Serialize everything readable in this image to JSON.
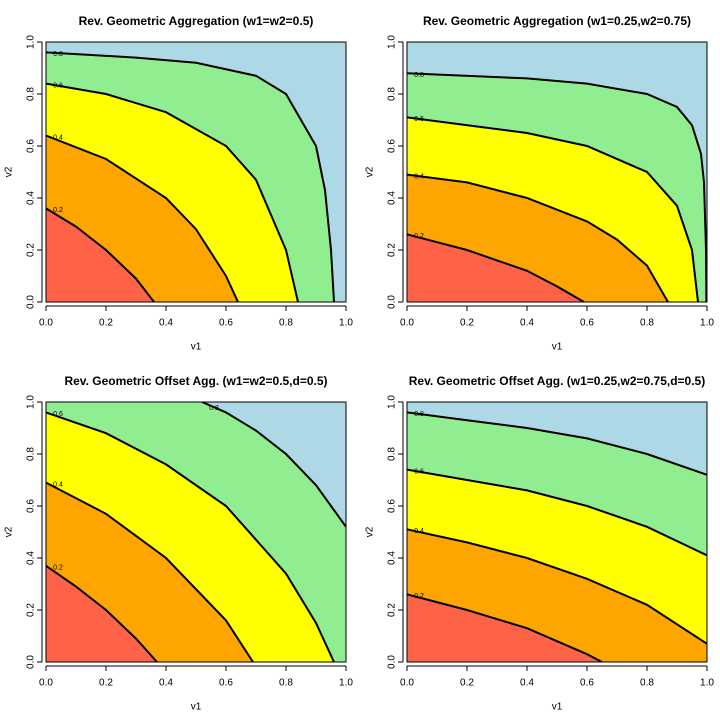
{
  "chart_data": [
    {
      "type": "contour",
      "title": "Rev. Geometric Aggregation (w1=w2=0.5)",
      "xlabel": "v1",
      "ylabel": "v2",
      "xlim": [
        0,
        1
      ],
      "ylim": [
        0,
        1
      ],
      "xticks": [
        {
          "value": 0,
          "label": "0.0"
        },
        0.2,
        0.4,
        0.6,
        0.8,
        {
          "value": 1,
          "label": "1.0"
        }
      ],
      "yticks": [
        {
          "value": 0,
          "label": "0.0"
        },
        0.2,
        0.4,
        0.6,
        0.8,
        {
          "value": 1,
          "label": "1.0"
        }
      ],
      "colors": [
        "#ff6347",
        "#ffa500",
        "#ffff00",
        "#90ee90",
        "#add8e6"
      ],
      "contours": [
        {
          "level": 0.2,
          "x": [
            0,
            0.1,
            0.2,
            0.3,
            0.36
          ],
          "y": [
            0.36,
            0.29,
            0.2,
            0.09,
            0
          ]
        },
        {
          "level": 0.4,
          "x": [
            0,
            0.2,
            0.4,
            0.5,
            0.6,
            0.64
          ],
          "y": [
            0.64,
            0.55,
            0.4,
            0.28,
            0.1,
            0
          ]
        },
        {
          "level": 0.6,
          "x": [
            0,
            0.2,
            0.4,
            0.6,
            0.7,
            0.8,
            0.84
          ],
          "y": [
            0.84,
            0.8,
            0.73,
            0.6,
            0.47,
            0.2,
            0
          ]
        },
        {
          "level": 0.8,
          "x": [
            0,
            0.3,
            0.5,
            0.7,
            0.8,
            0.9,
            0.93,
            0.95,
            0.96
          ],
          "y": [
            0.96,
            0.94,
            0.92,
            0.87,
            0.8,
            0.6,
            0.43,
            0.2,
            0
          ]
        }
      ]
    },
    {
      "type": "contour",
      "title": "Rev. Geometric Aggregation (w1=0.25,w2=0.75)",
      "xlabel": "v1",
      "ylabel": "v2",
      "xlim": [
        0,
        1
      ],
      "ylim": [
        0,
        1
      ],
      "xticks": [
        {
          "value": 0,
          "label": "0.0"
        },
        0.2,
        0.4,
        0.6,
        0.8,
        {
          "value": 1,
          "label": "1.0"
        }
      ],
      "yticks": [
        {
          "value": 0,
          "label": "0.0"
        },
        0.2,
        0.4,
        0.6,
        0.8,
        {
          "value": 1,
          "label": "1.0"
        }
      ],
      "colors": [
        "#ff6347",
        "#ffa500",
        "#ffff00",
        "#90ee90",
        "#add8e6"
      ],
      "contours": [
        {
          "level": 0.2,
          "x": [
            0,
            0.1,
            0.2,
            0.3,
            0.4,
            0.5,
            0.59
          ],
          "y": [
            0.26,
            0.23,
            0.2,
            0.16,
            0.12,
            0.06,
            0
          ]
        },
        {
          "level": 0.4,
          "x": [
            0,
            0.2,
            0.4,
            0.6,
            0.7,
            0.8,
            0.87
          ],
          "y": [
            0.49,
            0.46,
            0.4,
            0.31,
            0.24,
            0.14,
            0
          ]
        },
        {
          "level": 0.6,
          "x": [
            0,
            0.4,
            0.6,
            0.8,
            0.9,
            0.95,
            0.97
          ],
          "y": [
            0.71,
            0.65,
            0.6,
            0.5,
            0.37,
            0.2,
            0
          ]
        },
        {
          "level": 0.8,
          "x": [
            0,
            0.4,
            0.6,
            0.8,
            0.9,
            0.95,
            0.98,
            0.99,
            0.997,
            0.998
          ],
          "y": [
            0.88,
            0.86,
            0.84,
            0.8,
            0.75,
            0.68,
            0.57,
            0.46,
            0.19,
            0
          ]
        }
      ]
    },
    {
      "type": "contour",
      "title": "Rev. Geometric Offset Agg. (w1=w2=0.5,d=0.5)",
      "xlabel": "v1",
      "ylabel": "v2",
      "xlim": [
        0,
        1
      ],
      "ylim": [
        0,
        1
      ],
      "xticks": [
        {
          "value": 0,
          "label": "0.0"
        },
        0.2,
        0.4,
        0.6,
        0.8,
        {
          "value": 1,
          "label": "1.0"
        }
      ],
      "yticks": [
        {
          "value": 0,
          "label": "0.0"
        },
        0.2,
        0.4,
        0.6,
        0.8,
        {
          "value": 1,
          "label": "1.0"
        }
      ],
      "colors": [
        "#ff6347",
        "#ffa500",
        "#ffff00",
        "#90ee90",
        "#add8e6"
      ],
      "contours": [
        {
          "level": 0.2,
          "x": [
            0,
            0.1,
            0.2,
            0.3,
            0.37
          ],
          "y": [
            0.37,
            0.29,
            0.2,
            0.09,
            0
          ]
        },
        {
          "level": 0.4,
          "x": [
            0,
            0.2,
            0.4,
            0.6,
            0.69
          ],
          "y": [
            0.69,
            0.57,
            0.4,
            0.16,
            0
          ]
        },
        {
          "level": 0.6,
          "x": [
            0,
            0.2,
            0.4,
            0.6,
            0.8,
            0.9,
            0.96
          ],
          "y": [
            0.96,
            0.88,
            0.76,
            0.6,
            0.34,
            0.15,
            0
          ]
        },
        {
          "level": 0.8,
          "x": [
            0.52,
            0.6,
            0.7,
            0.8,
            0.9,
            1
          ],
          "y": [
            1,
            0.96,
            0.89,
            0.8,
            0.68,
            0.52
          ]
        }
      ]
    },
    {
      "type": "contour",
      "title": "Rev. Geometric Offset Agg. (w1=0.25,w2=0.75,d=0.5)",
      "xlabel": "v1",
      "ylabel": "v2",
      "xlim": [
        0,
        1
      ],
      "ylim": [
        0,
        1
      ],
      "xticks": [
        {
          "value": 0,
          "label": "0.0"
        },
        0.2,
        0.4,
        0.6,
        0.8,
        {
          "value": 1,
          "label": "1.0"
        }
      ],
      "yticks": [
        {
          "value": 0,
          "label": "0.0"
        },
        0.2,
        0.4,
        0.6,
        0.8,
        {
          "value": 1,
          "label": "1.0"
        }
      ],
      "colors": [
        "#ff6347",
        "#ffa500",
        "#ffff00",
        "#90ee90",
        "#add8e6"
      ],
      "contours": [
        {
          "level": 0.2,
          "x": [
            0,
            0.2,
            0.4,
            0.6,
            0.65
          ],
          "y": [
            0.26,
            0.2,
            0.13,
            0.03,
            0
          ]
        },
        {
          "level": 0.4,
          "x": [
            0,
            0.2,
            0.4,
            0.6,
            0.8,
            1
          ],
          "y": [
            0.51,
            0.46,
            0.4,
            0.32,
            0.22,
            0.07
          ]
        },
        {
          "level": 0.6,
          "x": [
            0,
            0.2,
            0.4,
            0.6,
            0.8,
            1
          ],
          "y": [
            0.74,
            0.7,
            0.66,
            0.6,
            0.52,
            0.41
          ]
        },
        {
          "level": 0.8,
          "x": [
            0,
            0.2,
            0.4,
            0.6,
            0.8,
            1
          ],
          "y": [
            0.96,
            0.93,
            0.9,
            0.86,
            0.8,
            0.72
          ]
        }
      ]
    }
  ]
}
